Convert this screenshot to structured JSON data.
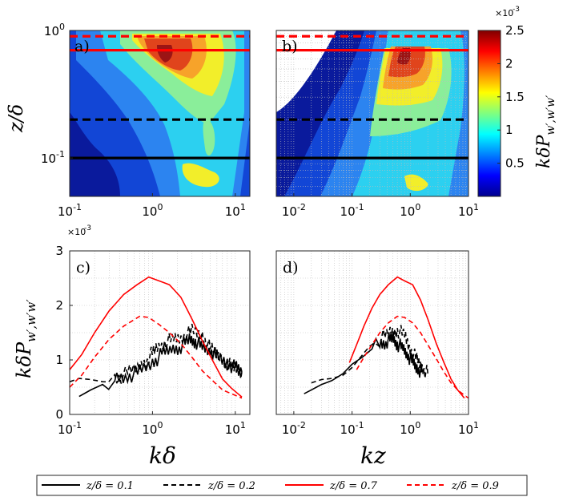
{
  "chart_data": [
    {
      "panel": "a)",
      "type": "heatmap",
      "xlabel": "",
      "ylabel": "z/δ",
      "xlim": [
        0.1,
        15
      ],
      "ylim": [
        0.05,
        1.0
      ],
      "xscale": "log",
      "yscale": "log",
      "xticks": [
        "10^-1",
        "10^0",
        "10^1"
      ],
      "yticks": [
        "10^-1",
        "10^0"
      ],
      "reference_lines": [
        {
          "z_over_delta": 0.1,
          "style": "solid",
          "color": "#000000"
        },
        {
          "z_over_delta": 0.2,
          "style": "dashed",
          "color": "#000000"
        },
        {
          "z_over_delta": 0.7,
          "style": "solid",
          "color": "#ff0000"
        },
        {
          "z_over_delta": 0.9,
          "style": "dashed",
          "color": "#ff0000"
        }
      ],
      "peak": {
        "x": 1.0,
        "z_over_delta": 0.6,
        "value": 0.0025
      }
    },
    {
      "panel": "b)",
      "type": "heatmap",
      "xlabel": "",
      "ylabel": "",
      "xlim": [
        0.005,
        10
      ],
      "ylim": [
        0.05,
        1.0
      ],
      "xscale": "log",
      "yscale": "log",
      "xticks": [
        "10^-2",
        "10^-1",
        "10^0",
        "10^1"
      ],
      "peak": {
        "x": 0.6,
        "z_over_delta": 0.6,
        "value": 0.0025
      }
    },
    {
      "panel": "colorbar",
      "type": "heatmap",
      "label": "kδP_{w',w'w'}",
      "scale_note": "×10^-3",
      "range": [
        0.0,
        2.5
      ],
      "ticks": [
        "0.5",
        "1",
        "1.5",
        "2",
        "2.5"
      ]
    },
    {
      "panel": "c)",
      "type": "line",
      "xlabel": "kδ",
      "ylabel": "kδP_{w',w'w'}",
      "xlim": [
        0.1,
        15
      ],
      "ylim": [
        0,
        3
      ],
      "xscale": "log",
      "scale_note": "×10^-3",
      "xticks": [
        "10^-1",
        "10^0",
        "10^1"
      ],
      "yticks": [
        "0",
        "1",
        "2",
        "3"
      ],
      "series": [
        {
          "name": "z/δ = 0.1",
          "style": "solid",
          "color": "#000000",
          "x": [
            0.13,
            0.18,
            0.25,
            0.35,
            0.5,
            0.7,
            1.0,
            1.3,
            1.7,
            2.2,
            2.8,
            3.3,
            4.0,
            5.0,
            6.0,
            8.0,
            10.0,
            12.0
          ],
          "y": [
            0.33,
            0.45,
            0.55,
            0.65,
            0.7,
            0.78,
            0.95,
            1.1,
            1.2,
            1.25,
            1.38,
            1.35,
            1.22,
            1.18,
            1.05,
            0.95,
            0.85,
            0.78
          ]
        },
        {
          "name": "z/δ = 0.2",
          "style": "dashed",
          "color": "#000000",
          "x": [
            0.1,
            0.13,
            0.18,
            0.25,
            0.35,
            0.5,
            0.7,
            0.9,
            1.1,
            1.4,
            1.8,
            2.3,
            3.0,
            4.0,
            5.0,
            6.5,
            8.0,
            10.0,
            12.0
          ],
          "y": [
            0.6,
            0.66,
            0.64,
            0.6,
            0.66,
            0.75,
            0.88,
            1.05,
            1.2,
            1.32,
            1.38,
            1.42,
            1.52,
            1.45,
            1.2,
            1.05,
            0.92,
            0.85,
            0.78
          ]
        },
        {
          "name": "z/δ = 0.7",
          "style": "solid",
          "color": "#ff0000",
          "x": [
            0.1,
            0.14,
            0.2,
            0.3,
            0.45,
            0.65,
            0.9,
            1.2,
            1.6,
            2.2,
            3.0,
            4.0,
            5.5,
            7.0,
            9.0,
            12.0
          ],
          "y": [
            0.82,
            1.1,
            1.5,
            1.9,
            2.2,
            2.38,
            2.52,
            2.45,
            2.38,
            2.15,
            1.75,
            1.35,
            0.95,
            0.65,
            0.48,
            0.32
          ]
        },
        {
          "name": "z/δ = 0.9",
          "style": "dashed",
          "color": "#ff0000",
          "x": [
            0.1,
            0.14,
            0.2,
            0.3,
            0.45,
            0.7,
            0.9,
            1.2,
            1.6,
            2.2,
            3.0,
            4.0,
            5.5,
            7.0,
            9.0,
            12.0
          ],
          "y": [
            0.5,
            0.72,
            1.05,
            1.38,
            1.62,
            1.8,
            1.78,
            1.65,
            1.5,
            1.3,
            1.05,
            0.8,
            0.6,
            0.45,
            0.38,
            0.3
          ]
        }
      ]
    },
    {
      "panel": "d)",
      "type": "line",
      "xlabel": "kz",
      "ylabel": "",
      "xlim": [
        0.005,
        10
      ],
      "ylim": [
        0,
        3
      ],
      "xscale": "log",
      "xticks": [
        "10^-2",
        "10^-1",
        "10^0",
        "10^1"
      ],
      "series": [
        {
          "name": "z/δ = 0.1",
          "style": "solid",
          "color": "#000000",
          "x": [
            0.015,
            0.02,
            0.03,
            0.045,
            0.07,
            0.1,
            0.15,
            0.22,
            0.3,
            0.4,
            0.5,
            0.6,
            0.75,
            0.9,
            1.1,
            1.3,
            1.6
          ],
          "y": [
            0.38,
            0.45,
            0.55,
            0.62,
            0.75,
            0.92,
            1.05,
            1.2,
            1.3,
            1.35,
            1.4,
            1.3,
            1.2,
            1.1,
            0.95,
            0.85,
            0.78
          ]
        },
        {
          "name": "z/δ = 0.2",
          "style": "dashed",
          "color": "#000000",
          "x": [
            0.02,
            0.03,
            0.045,
            0.07,
            0.1,
            0.14,
            0.2,
            0.3,
            0.45,
            0.6,
            0.8,
            1.0,
            1.3,
            1.6,
            2.0
          ],
          "y": [
            0.58,
            0.64,
            0.66,
            0.72,
            0.86,
            1.05,
            1.25,
            1.38,
            1.5,
            1.55,
            1.45,
            1.2,
            1.0,
            0.85,
            0.75
          ]
        },
        {
          "name": "z/δ = 0.7",
          "style": "solid",
          "color": "#ff0000",
          "x": [
            0.09,
            0.12,
            0.16,
            0.22,
            0.3,
            0.42,
            0.6,
            0.8,
            1.1,
            1.5,
            2.0,
            2.8,
            3.8,
            5.0,
            6.5,
            8.5
          ],
          "y": [
            0.95,
            1.28,
            1.62,
            1.95,
            2.2,
            2.38,
            2.52,
            2.45,
            2.38,
            2.1,
            1.75,
            1.3,
            0.95,
            0.65,
            0.45,
            0.3
          ]
        },
        {
          "name": "z/δ = 0.9",
          "style": "dashed",
          "color": "#ff0000",
          "x": [
            0.12,
            0.16,
            0.22,
            0.3,
            0.42,
            0.6,
            0.8,
            1.1,
            1.5,
            2.0,
            2.8,
            3.8,
            5.0,
            6.5,
            8.5,
            10.0
          ],
          "y": [
            0.82,
            1.05,
            1.28,
            1.5,
            1.68,
            1.8,
            1.78,
            1.68,
            1.5,
            1.28,
            1.02,
            0.78,
            0.58,
            0.45,
            0.35,
            0.3
          ]
        }
      ]
    }
  ],
  "legend": {
    "entries": [
      {
        "label": "z/δ = 0.1",
        "style": "solid",
        "color": "#000000"
      },
      {
        "label": "z/δ = 0.2",
        "style": "dashed",
        "color": "#000000"
      },
      {
        "label": "z/δ = 0.7",
        "style": "solid",
        "color": "#ff0000"
      },
      {
        "label": "z/δ = 0.9",
        "style": "dashed",
        "color": "#ff0000"
      }
    ]
  },
  "text": {
    "panel_a": "a)",
    "panel_b": "b)",
    "panel_c": "c)",
    "panel_d": "d)",
    "ylabel_top": "z/δ",
    "ylabel_bottom": "kδP",
    "ylabel_sub": "w′,w′w′",
    "cb_label": "kδP",
    "cb_sub": "w′,w′w′",
    "scale_exp_base": "×10",
    "scale_exp": "-3",
    "xlabel_c": "kδ",
    "xlabel_d": "kz"
  }
}
